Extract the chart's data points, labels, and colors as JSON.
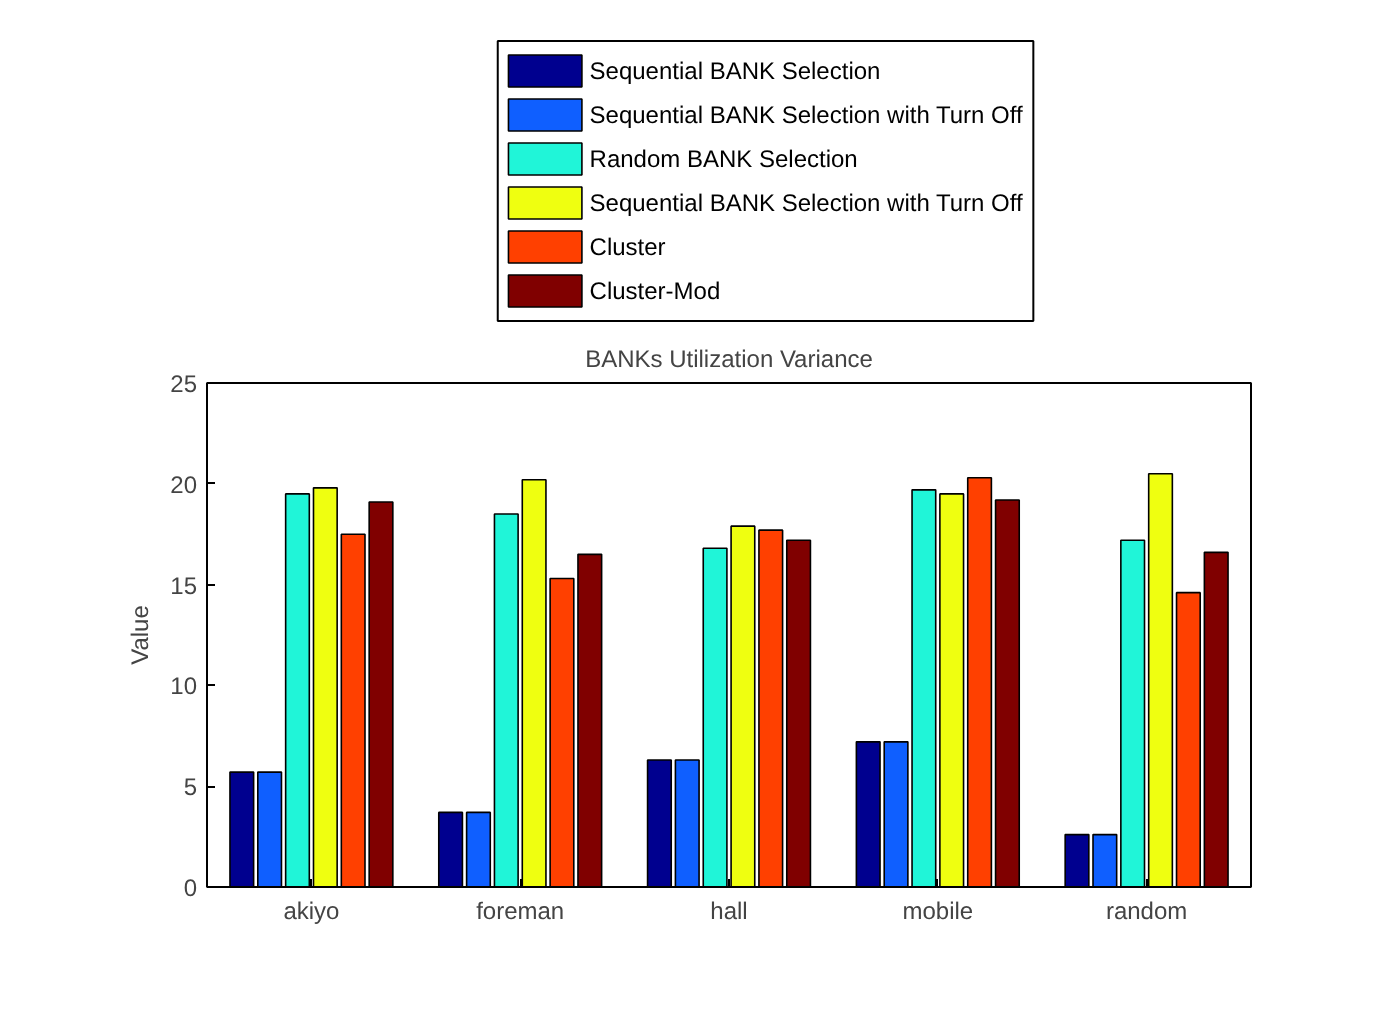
{
  "chart_data": {
    "type": "bar",
    "title": "BANKs Utilization Variance",
    "ylabel": "Value",
    "categories": [
      "akiyo",
      "foreman",
      "hall",
      "mobile",
      "random"
    ],
    "series": [
      {
        "name": "Sequential BANK Selection",
        "color": "#00008f",
        "values": [
          5.7,
          3.7,
          6.3,
          7.2,
          2.6
        ]
      },
      {
        "name": "Sequential BANK Selection with Turn Off",
        "color": "#0f5fff",
        "values": [
          5.7,
          3.7,
          6.3,
          7.2,
          2.6
        ]
      },
      {
        "name": "Random BANK Selection",
        "color": "#20f5d8",
        "values": [
          19.5,
          18.5,
          16.8,
          19.7,
          17.2
        ]
      },
      {
        "name": "Sequential BANK Selection with Turn Off",
        "color": "#efff10",
        "values": [
          19.8,
          20.2,
          17.9,
          19.5,
          20.5
        ]
      },
      {
        "name": "Cluster",
        "color": "#ff4000",
        "values": [
          17.5,
          15.3,
          17.7,
          20.3,
          14.6
        ]
      },
      {
        "name": "Cluster-Mod",
        "color": "#800000",
        "values": [
          19.1,
          16.5,
          17.2,
          19.2,
          16.6
        ]
      }
    ],
    "ylim": [
      0,
      25
    ],
    "yticks": [
      0,
      5,
      10,
      15,
      20,
      25
    ],
    "grid": false,
    "legend": "top"
  }
}
